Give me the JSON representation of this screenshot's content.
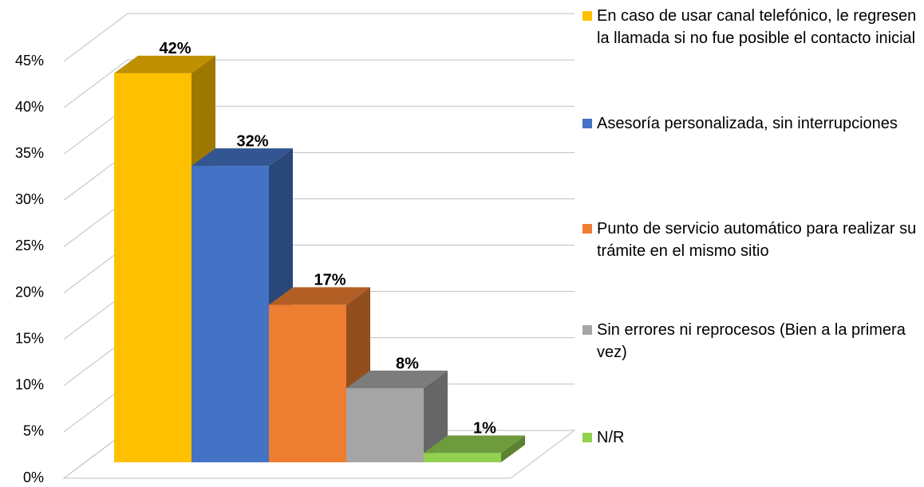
{
  "chart_data": {
    "type": "bar3d",
    "categories": [
      "En caso de usar canal telefónico, le regresen la llamada si no fue posible el contacto inicial",
      "Asesoría personalizada, sin interrupciones",
      "Punto de servicio automático para realizar su trámite en el mismo sitio",
      "Sin errores ni reprocesos (Bien a la primera vez)",
      "N/R"
    ],
    "values": [
      42,
      32,
      17,
      8,
      1
    ],
    "value_labels": [
      "42%",
      "32%",
      "17%",
      "8%",
      "1%"
    ],
    "colors": [
      "#FFC000",
      "#4472C4",
      "#ED7D31",
      "#A5A5A5",
      "#92D050"
    ],
    "ylim": [
      0,
      45
    ],
    "yticks": [
      {
        "value": 0,
        "label": "0%"
      },
      {
        "value": 5,
        "label": "5%"
      },
      {
        "value": 10,
        "label": "10%"
      },
      {
        "value": 15,
        "label": "15%"
      },
      {
        "value": 20,
        "label": "20%"
      },
      {
        "value": 25,
        "label": "25%"
      },
      {
        "value": 30,
        "label": "30%"
      },
      {
        "value": 35,
        "label": "35%"
      },
      {
        "value": 40,
        "label": "40%"
      },
      {
        "value": 45,
        "label": "45%"
      }
    ],
    "grid": true,
    "legend": "right"
  }
}
